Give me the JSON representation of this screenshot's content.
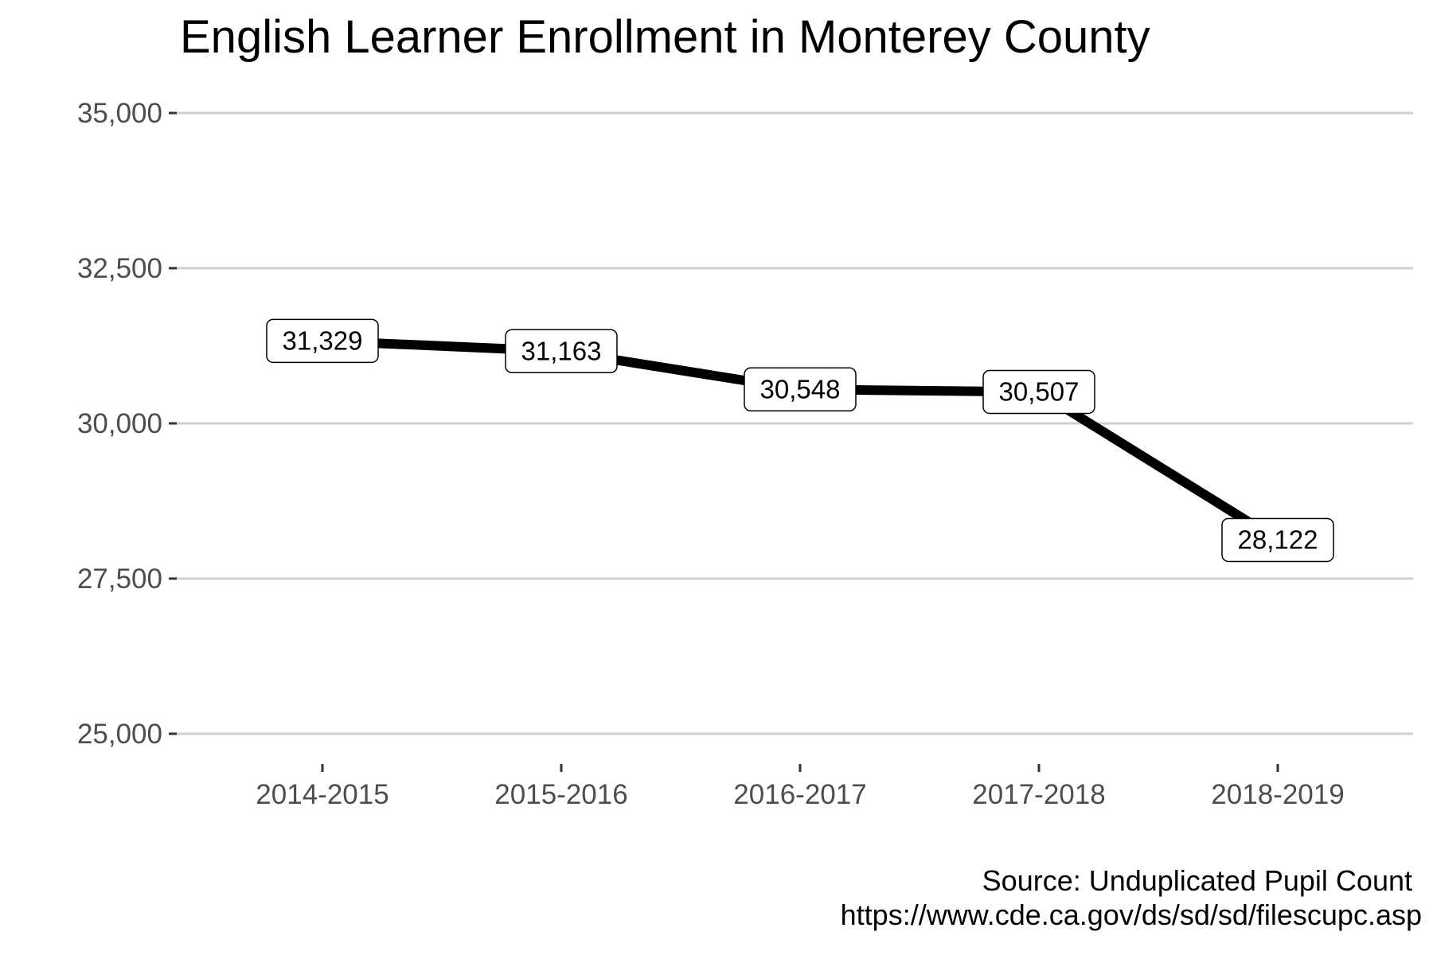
{
  "chart_data": {
    "type": "line",
    "title": "English Learner Enrollment in Monterey County",
    "xlabel": "",
    "ylabel": "",
    "categories": [
      "2014-2015",
      "2015-2016",
      "2016-2017",
      "2017-2018",
      "2018-2019"
    ],
    "series": [
      {
        "values": [
          31329,
          31163,
          30548,
          30507,
          28122
        ],
        "labels": [
          "31,329",
          "31,163",
          "30,548",
          "30,507",
          "28,122"
        ],
        "color": "#000000"
      }
    ],
    "ylim": [
      25000,
      35000
    ],
    "yticks": [
      25000,
      27500,
      30000,
      32500,
      35000
    ],
    "ytick_labels": [
      "25,000",
      "27,500",
      "30,000",
      "32,500",
      "35,000"
    ],
    "grid": "horizontal",
    "legend": "none"
  },
  "caption": {
    "line1": "Source: Unduplicated Pupil Count",
    "line2": "https://www.cde.ca.gov/ds/sd/sd/filescupc.asp"
  }
}
